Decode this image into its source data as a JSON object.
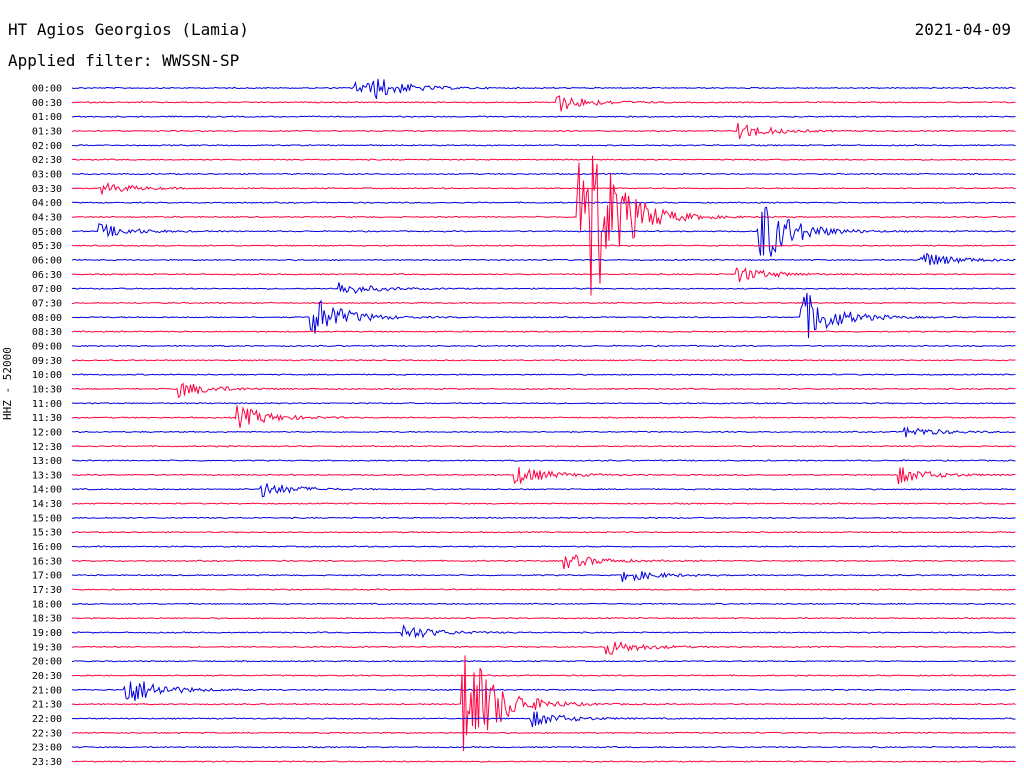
{
  "header": {
    "station": "HT Agios Georgios (Lamia)",
    "date": "2021-04-09",
    "filter_label": "Applied filter:",
    "filter_value": "WWSSN-SP"
  },
  "colors": {
    "trace_a": "#0000e0",
    "trace_b": "#ff0040",
    "text": "#000000"
  },
  "chart_data": {
    "type": "line",
    "title": "HT Agios Georgios (Lamia)",
    "ylabel": "HHZ - 52000",
    "xlabel": "",
    "row_interval_minutes": 30,
    "rows": [
      "00:00",
      "00:30",
      "01:00",
      "01:30",
      "02:00",
      "02:30",
      "03:00",
      "03:30",
      "04:00",
      "04:30",
      "05:00",
      "05:30",
      "06:00",
      "06:30",
      "07:00",
      "07:30",
      "08:00",
      "08:30",
      "09:00",
      "09:30",
      "10:00",
      "10:30",
      "11:00",
      "11:30",
      "12:00",
      "12:30",
      "13:00",
      "13:30",
      "14:00",
      "14:30",
      "15:00",
      "15:30",
      "16:00",
      "16:30",
      "17:00",
      "17:30",
      "18:00",
      "18:30",
      "19:00",
      "19:30",
      "20:00",
      "20:30",
      "21:00",
      "21:30",
      "22:00",
      "22:30",
      "23:00",
      "23:30"
    ],
    "series_colors": [
      "#0000e0",
      "#ff0040"
    ],
    "events": [
      {
        "row": "00:00",
        "minute": 9.0,
        "amp": 0.5
      },
      {
        "row": "00:00",
        "minute": 9.6,
        "amp": 0.6
      },
      {
        "row": "00:30",
        "minute": 15.4,
        "amp": 0.7
      },
      {
        "row": "01:30",
        "minute": 21.2,
        "amp": 0.6
      },
      {
        "row": "03:30",
        "minute": 1.0,
        "amp": 0.4
      },
      {
        "row": "04:30",
        "minute": 16.1,
        "amp": 10.0
      },
      {
        "row": "05:00",
        "minute": 21.8,
        "amp": 2.8
      },
      {
        "row": "05:00",
        "minute": 0.9,
        "amp": 0.5
      },
      {
        "row": "06:00",
        "minute": 27.0,
        "amp": 0.6
      },
      {
        "row": "06:30",
        "minute": 21.1,
        "amp": 0.6
      },
      {
        "row": "07:00",
        "minute": 8.5,
        "amp": 0.5
      },
      {
        "row": "08:00",
        "minute": 7.6,
        "amp": 1.6
      },
      {
        "row": "08:00",
        "minute": 23.2,
        "amp": 2.0
      },
      {
        "row": "10:30",
        "minute": 3.4,
        "amp": 0.6
      },
      {
        "row": "11:30",
        "minute": 5.2,
        "amp": 0.9
      },
      {
        "row": "12:00",
        "minute": 26.5,
        "amp": 0.4
      },
      {
        "row": "13:30",
        "minute": 14.1,
        "amp": 0.7
      },
      {
        "row": "13:30",
        "minute": 26.3,
        "amp": 0.6
      },
      {
        "row": "14:00",
        "minute": 6.0,
        "amp": 0.6
      },
      {
        "row": "16:30",
        "minute": 15.6,
        "amp": 0.6
      },
      {
        "row": "17:00",
        "minute": 17.5,
        "amp": 0.5
      },
      {
        "row": "19:00",
        "minute": 10.5,
        "amp": 0.6
      },
      {
        "row": "19:30",
        "minute": 17.0,
        "amp": 0.6
      },
      {
        "row": "21:00",
        "minute": 1.7,
        "amp": 1.2
      },
      {
        "row": "21:30",
        "minute": 12.4,
        "amp": 5.0
      },
      {
        "row": "22:00",
        "minute": 14.6,
        "amp": 0.6
      }
    ]
  }
}
